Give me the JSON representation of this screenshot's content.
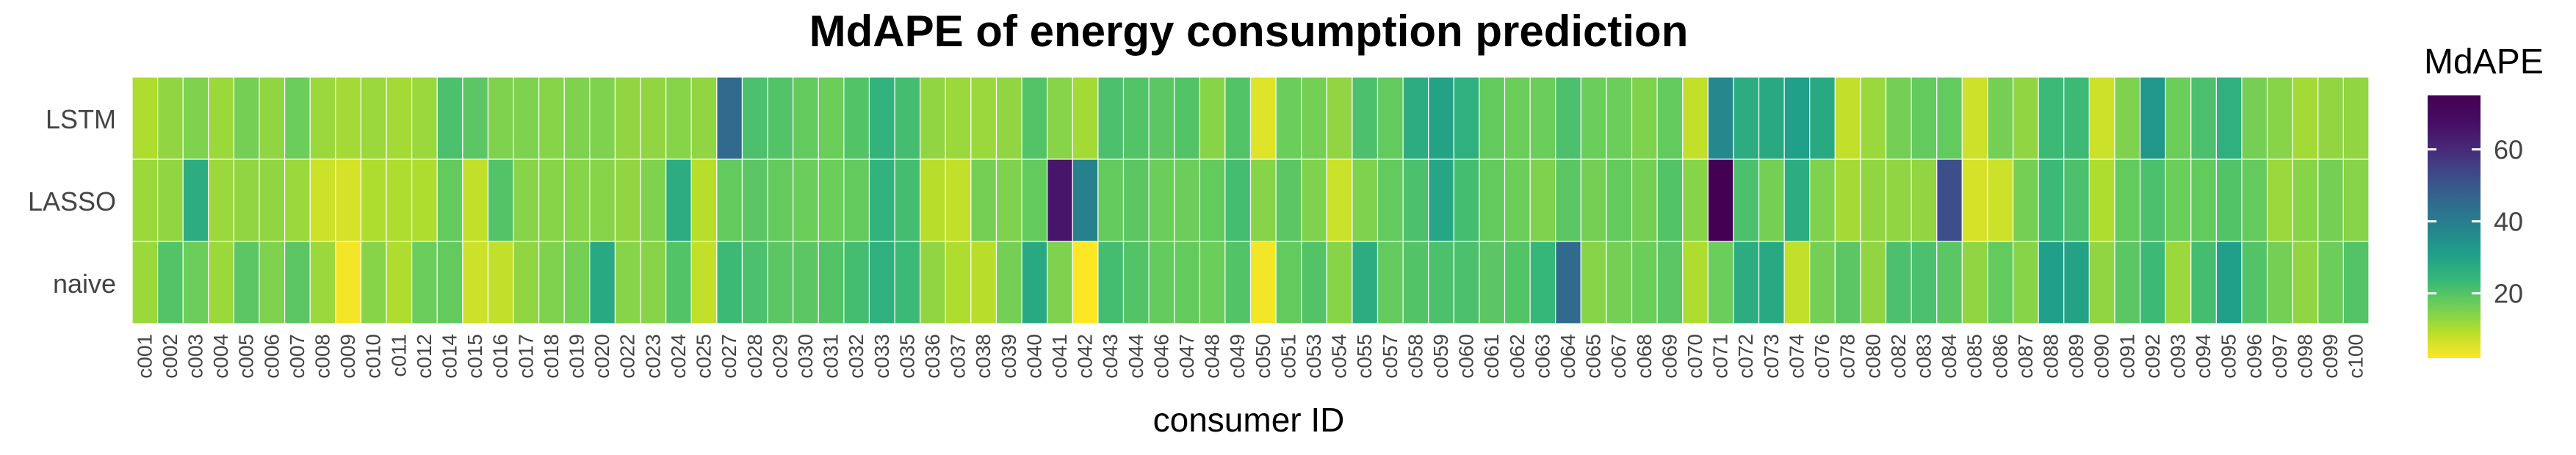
{
  "chart_data": {
    "type": "heatmap",
    "title": "MdAPE of energy consumption prediction",
    "xlabel": "consumer ID",
    "ylabel": "",
    "rows": [
      "LSTM",
      "LASSO",
      "naive"
    ],
    "columns": [
      "c001",
      "c002",
      "c003",
      "c004",
      "c005",
      "c006",
      "c007",
      "c008",
      "c009",
      "c010",
      "c011",
      "c012",
      "c014",
      "c015",
      "c016",
      "c017",
      "c018",
      "c019",
      "c020",
      "c022",
      "c023",
      "c024",
      "c025",
      "c027",
      "c028",
      "c029",
      "c030",
      "c031",
      "c032",
      "c033",
      "c035",
      "c036",
      "c037",
      "c038",
      "c039",
      "c040",
      "c041",
      "c042",
      "c043",
      "c044",
      "c046",
      "c047",
      "c048",
      "c049",
      "c050",
      "c051",
      "c053",
      "c054",
      "c055",
      "c057",
      "c058",
      "c059",
      "c060",
      "c061",
      "c062",
      "c063",
      "c064",
      "c065",
      "c067",
      "c068",
      "c069",
      "c070",
      "c071",
      "c072",
      "c073",
      "c074",
      "c076",
      "c078",
      "c080",
      "c082",
      "c083",
      "c084",
      "c085",
      "c086",
      "c087",
      "c088",
      "c089",
      "c090",
      "c091",
      "c092",
      "c093",
      "c094",
      "c095",
      "c096",
      "c097",
      "c098",
      "c099",
      "c100"
    ],
    "values": [
      [
        10,
        13,
        15,
        12,
        16,
        13,
        17,
        12,
        11,
        12,
        11,
        12,
        21,
        19,
        15,
        15,
        14,
        15,
        15,
        13,
        13,
        14,
        13,
        45,
        21,
        20,
        18,
        17,
        20,
        25,
        22,
        13,
        12,
        12,
        13,
        20,
        14,
        11,
        21,
        20,
        19,
        20,
        14,
        20,
        5,
        17,
        16,
        13,
        21,
        18,
        27,
        30,
        26,
        18,
        17,
        17,
        21,
        17,
        17,
        15,
        18,
        8,
        37,
        27,
        28,
        31,
        28,
        8,
        12,
        16,
        18,
        18,
        7,
        16,
        13,
        23,
        23,
        7,
        15,
        33,
        17,
        21,
        26,
        16,
        14,
        11,
        13,
        13
      ],
      [
        12,
        13,
        27,
        12,
        13,
        13,
        12,
        7,
        6,
        10,
        10,
        10,
        18,
        8,
        20,
        14,
        14,
        14,
        14,
        13,
        15,
        27,
        9,
        18,
        19,
        18,
        17,
        17,
        18,
        25,
        22,
        9,
        8,
        16,
        15,
        18,
        65,
        39,
        18,
        19,
        17,
        17,
        18,
        22,
        14,
        19,
        15,
        7,
        15,
        18,
        21,
        29,
        22,
        18,
        17,
        15,
        19,
        16,
        18,
        16,
        20,
        14,
        80,
        21,
        16,
        27,
        15,
        11,
        13,
        13,
        13,
        52,
        6,
        7,
        16,
        23,
        21,
        10,
        18,
        21,
        17,
        18,
        20,
        18,
        12,
        14,
        16,
        14
      ],
      [
        12,
        20,
        17,
        12,
        19,
        15,
        19,
        12,
        3,
        14,
        10,
        17,
        18,
        7,
        8,
        13,
        15,
        16,
        28,
        14,
        14,
        20,
        8,
        23,
        21,
        19,
        19,
        20,
        22,
        26,
        23,
        13,
        10,
        9,
        16,
        28,
        15,
        2,
        22,
        20,
        18,
        18,
        17,
        20,
        3,
        18,
        20,
        14,
        27,
        18,
        20,
        21,
        21,
        19,
        20,
        24,
        45,
        14,
        16,
        17,
        19,
        10,
        17,
        27,
        28,
        8,
        16,
        19,
        13,
        21,
        21,
        19,
        13,
        18,
        14,
        31,
        30,
        13,
        19,
        23,
        12,
        22,
        31,
        20,
        16,
        13,
        17,
        20
      ]
    ],
    "colorbar": {
      "title": "MdAPE",
      "ticks": [
        "20",
        "40",
        "60"
      ],
      "tick_values": [
        20,
        40,
        60
      ],
      "range": [
        2,
        75
      ]
    },
    "colormap": "viridis (reversed)",
    "grid": "thin white lines between cells"
  }
}
